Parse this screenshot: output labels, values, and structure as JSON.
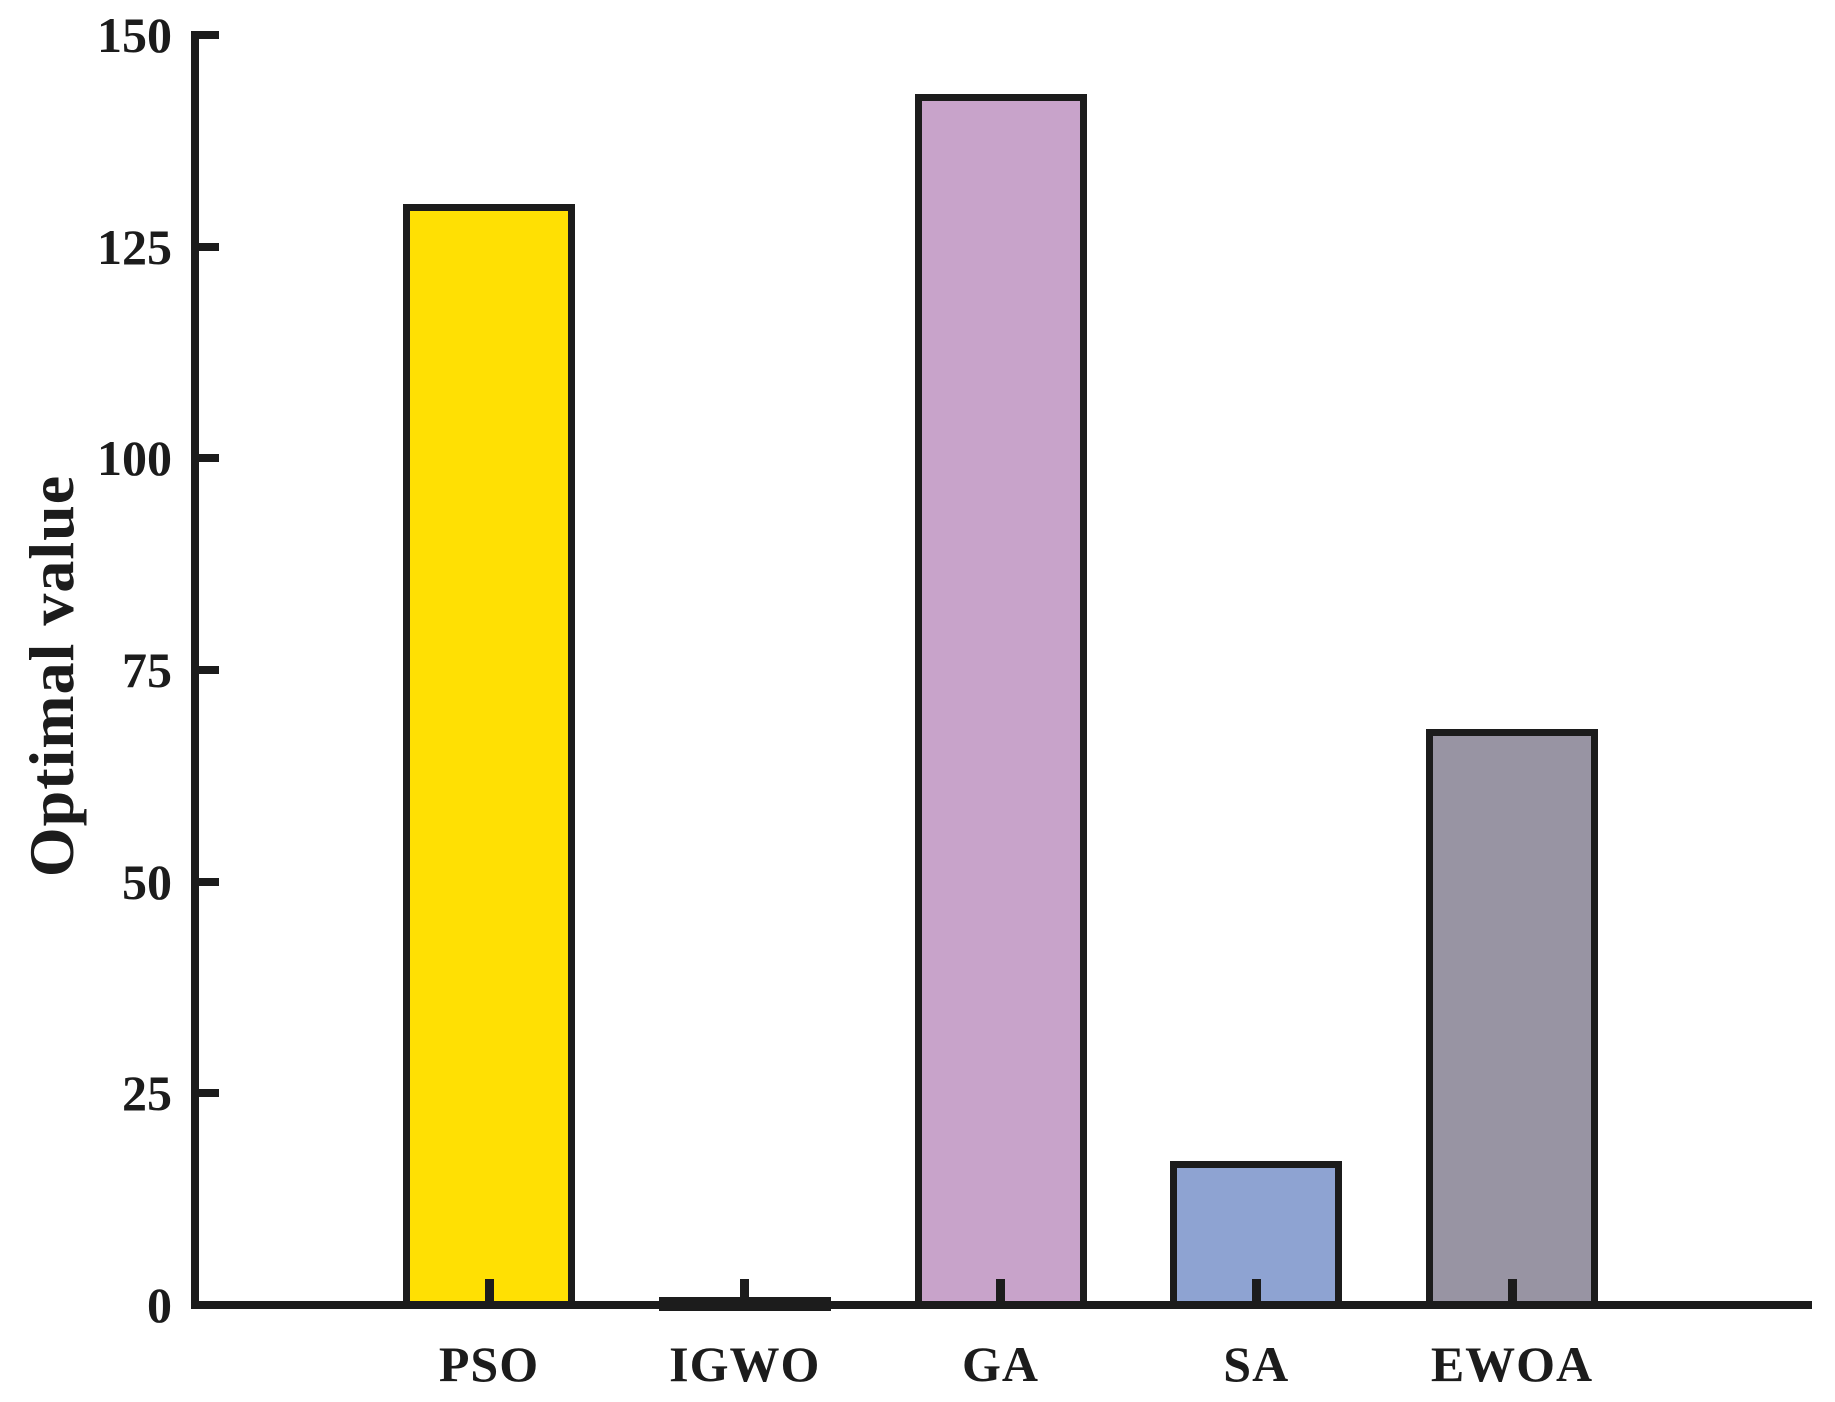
{
  "chart_data": {
    "type": "bar",
    "title": "",
    "xlabel": "",
    "ylabel": "Optimal value",
    "categories": [
      "PSO",
      "IGWO",
      "GA",
      "SA",
      "EWOA"
    ],
    "values": [
      130,
      1,
      143,
      17,
      68
    ],
    "bar_colors": [
      "#ffe003",
      "#1c1c1c",
      "#c8a3ca",
      "#8ea3d2",
      "#9894a3"
    ],
    "bar_edge_color": "#1c1c1c",
    "ylim": [
      0,
      150
    ],
    "yticks": [
      0,
      25,
      50,
      75,
      100,
      125,
      150
    ],
    "grid": false,
    "legend": null,
    "axis_color": "#1c1c1c",
    "background_color": "#ffffff"
  }
}
